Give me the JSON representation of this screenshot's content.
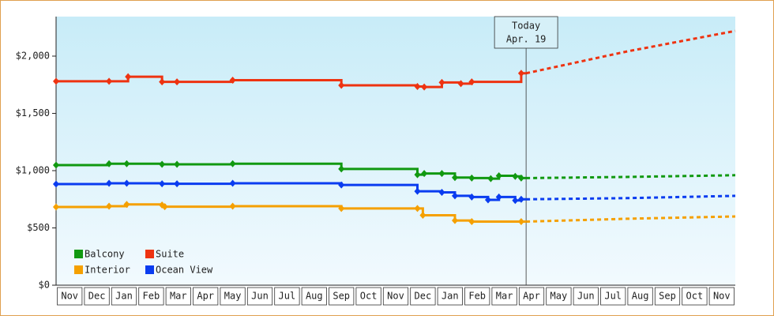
{
  "chart_data": {
    "type": "step-line",
    "categories": [
      "Nov",
      "Dec",
      "Jan",
      "Feb",
      "Mar",
      "Apr",
      "May",
      "Jun",
      "Jul",
      "Aug",
      "Sep",
      "Oct",
      "Nov",
      "Dec",
      "Jan",
      "Feb",
      "Mar",
      "Apr",
      "May",
      "Jun",
      "Jul",
      "Aug",
      "Sep",
      "Oct",
      "Nov"
    ],
    "xlim": [
      0,
      25
    ],
    "ylim": [
      0,
      2345
    ],
    "yticks": [
      {
        "value": 0,
        "label": "$0"
      },
      {
        "value": 500,
        "label": "$500"
      },
      {
        "value": 1000,
        "label": "$1,000"
      },
      {
        "value": 1500,
        "label": "$1,500"
      },
      {
        "value": 2000,
        "label": "$2,000"
      }
    ],
    "annotation": {
      "lines": [
        "Today",
        "Apr. 19"
      ],
      "x": 17.3
    },
    "legend": "lower-left",
    "series": [
      {
        "name": "Balcony",
        "color": "#119911",
        "x": [
          0,
          1.95,
          2.6,
          3.9,
          4.45,
          6.5,
          10.5,
          13.3,
          13.55,
          14.2,
          14.68,
          15.3,
          16.0,
          16.3,
          16.9,
          17.12
        ],
        "values": [
          1048,
          1060,
          1060,
          1055,
          1055,
          1060,
          1015,
          965,
          975,
          975,
          940,
          935,
          930,
          955,
          950,
          935
        ],
        "projection": {
          "x": [
            17.3,
            21,
            25
          ],
          "values": [
            935,
            945,
            960
          ]
        }
      },
      {
        "name": "Suite",
        "color": "#ee3311",
        "x": [
          0,
          1.95,
          2.65,
          3.9,
          4.45,
          6.5,
          10.5,
          13.3,
          13.55,
          14.2,
          14.9,
          15.3,
          17.12
        ],
        "values": [
          1780,
          1780,
          1820,
          1775,
          1775,
          1790,
          1745,
          1735,
          1730,
          1770,
          1760,
          1775,
          1850
        ],
        "projection": {
          "x": [
            17.3,
            21,
            25
          ],
          "values": [
            1850,
            2040,
            2220
          ]
        }
      },
      {
        "name": "Interior",
        "color": "#f5a000",
        "x": [
          0,
          1.95,
          2.6,
          3.9,
          4.0,
          6.5,
          10.5,
          13.3,
          13.5,
          14.68,
          15.3,
          17.12
        ],
        "values": [
          683,
          690,
          705,
          700,
          685,
          690,
          670,
          670,
          610,
          565,
          555,
          555
        ],
        "projection": {
          "x": [
            17.3,
            21,
            25
          ],
          "values": [
            555,
            580,
            600
          ]
        }
      },
      {
        "name": "Ocean View",
        "color": "#0a3cf0",
        "x": [
          0,
          1.95,
          2.6,
          3.9,
          4.45,
          6.5,
          10.5,
          13.3,
          14.2,
          14.68,
          15.3,
          15.9,
          16.3,
          16.9,
          17.12
        ],
        "values": [
          883,
          890,
          890,
          885,
          885,
          890,
          875,
          820,
          810,
          780,
          770,
          745,
          770,
          740,
          750
        ],
        "projection": {
          "x": [
            17.3,
            21,
            25
          ],
          "values": [
            750,
            760,
            780
          ]
        }
      }
    ]
  }
}
